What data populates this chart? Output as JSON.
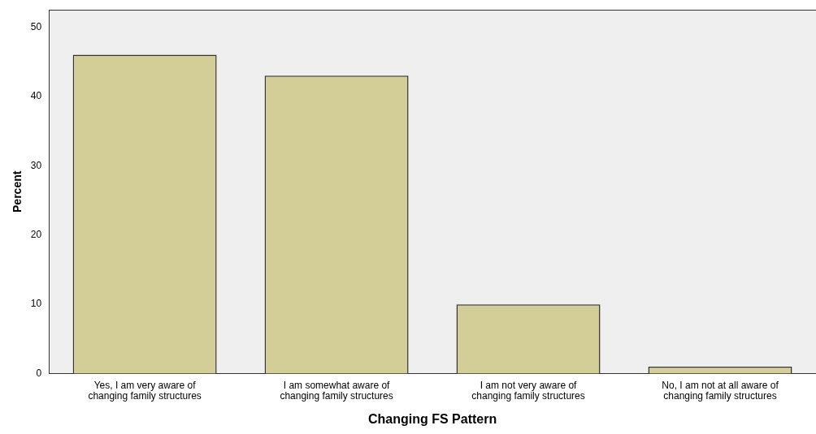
{
  "chart_data": {
    "type": "bar",
    "xlabel": "Changing FS Pattern",
    "ylabel": "Percent",
    "categories": [
      "Yes, I am very aware of changing family structures",
      "I am somewhat aware of changing family structures",
      "I am not very aware of changing family structures",
      "No, I am not at all aware of changing family structures"
    ],
    "values": [
      46,
      43,
      10,
      1
    ],
    "color": "#d3ce97",
    "ylim": [
      0,
      52.5
    ],
    "yticks": [
      0,
      10,
      20,
      30,
      40,
      50
    ],
    "grid": false,
    "legend": false
  }
}
